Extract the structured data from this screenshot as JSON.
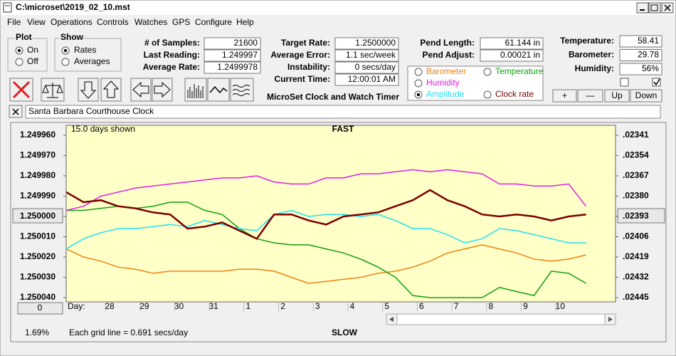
{
  "window": {
    "title": "C:\\microset\\2019_02_10.mst"
  },
  "menu": [
    "File",
    "View",
    "Operations",
    "Controls",
    "Watches",
    "GPS",
    "Configure",
    "Help"
  ],
  "plot": {
    "title": "Plot",
    "options": [
      "On",
      "Off"
    ],
    "selected": 0
  },
  "show": {
    "title": "Show",
    "options": [
      "Rates",
      "Averages"
    ],
    "selected": 0
  },
  "fields_left": [
    {
      "label": "# of Samples:",
      "value": "21600"
    },
    {
      "label": "Last Reading:",
      "value": "1.249997"
    },
    {
      "label": "Average Rate:",
      "value": "1.2499978"
    }
  ],
  "fields_mid": [
    {
      "label": "Target Rate:",
      "value": "1.2500000"
    },
    {
      "label": "Average Error:",
      "value": "1.1 sec/week"
    },
    {
      "label": "Instability:",
      "value": "0 secs/day"
    },
    {
      "label": "Current Time:",
      "value": "12:00:01 AM"
    }
  ],
  "fields_pend": [
    {
      "label": "Pend Length:",
      "value": "61.144 in"
    },
    {
      "label": "Pend Adjust:",
      "value": "0.00021 in"
    }
  ],
  "fields_env": [
    {
      "label": "Temperature:",
      "value": "58.41"
    },
    {
      "label": "Barometer:",
      "value": "29.78"
    },
    {
      "label": "Humidity:",
      "value": "56%"
    }
  ],
  "app_name": "MicroSet Clock and Watch Timer",
  "buttons": [
    "+",
    "—",
    "Up",
    "Down"
  ],
  "clock_name": "Santa Barbara Courthouse Clock",
  "status": {
    "offset_button": "0",
    "percent": "1.69%",
    "grid_note": "Each grid line = 0.691 secs/day"
  },
  "chart_data": {
    "type": "line",
    "top_label": "FAST",
    "bottom_label": "SLOW",
    "subtitle": "15.0 days shown",
    "xlabel": "Day:",
    "xlim": [
      0,
      15.85
    ],
    "xticks": [
      {
        "value": 1.13,
        "label": "28"
      },
      {
        "value": 2.13,
        "label": "29"
      },
      {
        "value": 3.13,
        "label": "30"
      },
      {
        "value": 4.13,
        "label": "31"
      },
      {
        "value": 5.13,
        "label": "1"
      },
      {
        "value": 6.13,
        "label": "2"
      },
      {
        "value": 7.13,
        "label": "3"
      },
      {
        "value": 8.13,
        "label": "4"
      },
      {
        "value": 9.13,
        "label": "5"
      },
      {
        "value": 10.13,
        "label": "6"
      },
      {
        "value": 11.13,
        "label": "7"
      },
      {
        "value": 12.13,
        "label": "8"
      },
      {
        "value": 13.13,
        "label": "9"
      },
      {
        "value": 14.13,
        "label": "10"
      }
    ],
    "ylim": [
      1.25004,
      1.24996
    ],
    "yticks": [
      {
        "value": 1.24996,
        "label": "1.249960"
      },
      {
        "value": 1.24997,
        "label": "1.249970"
      },
      {
        "value": 1.24998,
        "label": "1.249980"
      },
      {
        "value": 1.24999,
        "label": "1.249990"
      },
      {
        "value": 1.25,
        "label": "1.250000"
      },
      {
        "value": 1.25001,
        "label": "1.250010"
      },
      {
        "value": 1.25002,
        "label": "1.250020"
      },
      {
        "value": 1.25003,
        "label": "1.250030"
      },
      {
        "value": 1.25004,
        "label": "1.250040"
      }
    ],
    "y2lim": [
      0.02445,
      0.02341
    ],
    "y2ticks": [
      {
        "value": 0.02341,
        "label": ".02341"
      },
      {
        "value": 0.02354,
        "label": ".02354"
      },
      {
        "value": 0.02367,
        "label": ".02367"
      },
      {
        "value": 0.0238,
        "label": ".02380"
      },
      {
        "value": 0.02393,
        "label": ".02393"
      },
      {
        "value": 0.02406,
        "label": ".02406"
      },
      {
        "value": 0.02419,
        "label": ".02419"
      },
      {
        "value": 0.02432,
        "label": ".02432"
      },
      {
        "value": 0.02445,
        "label": ".02445"
      }
    ],
    "selected_series": 3,
    "x": [
      0,
      0.5,
      1,
      1.5,
      2,
      2.5,
      3,
      3.5,
      4,
      4.5,
      5,
      5.5,
      6,
      6.5,
      7,
      7.5,
      8,
      8.5,
      9,
      9.5,
      10,
      10.5,
      11,
      11.5,
      12,
      12.5,
      13,
      13.5,
      14,
      14.5,
      15
    ],
    "series": [
      {
        "name": "Barometer",
        "color": "#f08010",
        "values": [
          1.250016,
          1.25002,
          1.250022,
          1.250025,
          1.250026,
          1.250028,
          1.250027,
          1.250027,
          1.250027,
          1.250027,
          1.250026,
          1.250026,
          1.250027,
          1.25003,
          1.250033,
          1.250032,
          1.250031,
          1.25003,
          1.250028,
          1.250027,
          1.250025,
          1.250022,
          1.250018,
          1.250016,
          1.250014,
          1.250016,
          1.250018,
          1.250021,
          1.250022,
          1.250021,
          1.250019
        ]
      },
      {
        "name": "Temperature",
        "color": "#10a010",
        "values": [
          1.249997,
          1.249997,
          1.249996,
          1.249995,
          1.249996,
          1.249995,
          1.249993,
          1.249993,
          1.249997,
          1.249999,
          1.250006,
          1.250011,
          1.250013,
          1.250014,
          1.250014,
          1.250016,
          1.250018,
          1.250021,
          1.250025,
          1.25003,
          1.250039,
          1.25004,
          1.25004,
          1.25004,
          1.25004,
          1.250035,
          1.250037,
          1.250039,
          1.250027,
          1.250028,
          1.250033
        ]
      },
      {
        "name": "Humidity",
        "color": "#e020e0",
        "values": [
          1.249997,
          1.249995,
          1.24999,
          1.249988,
          1.249986,
          1.249985,
          1.249984,
          1.249983,
          1.249982,
          1.249981,
          1.249981,
          1.24998,
          1.249983,
          1.249984,
          1.249984,
          1.249981,
          1.249981,
          1.249979,
          1.249979,
          1.249978,
          1.249977,
          1.249978,
          1.249977,
          1.249978,
          1.249979,
          1.249984,
          1.249984,
          1.249985,
          1.249985,
          1.249984,
          1.249995
        ]
      },
      {
        "name": "Amplitude",
        "color": "#20e0f0",
        "values": [
          1.250016,
          1.250011,
          1.250008,
          1.250006,
          1.250006,
          1.250005,
          1.250004,
          1.250005,
          1.250002,
          1.250004,
          1.250006,
          1.250007,
          1.249999,
          1.249997,
          1.25,
          1.249999,
          1.249999,
          1.25,
          1.249999,
          1.250002,
          1.250006,
          1.250006,
          1.250009,
          1.250013,
          1.250011,
          1.250006,
          1.250007,
          1.250009,
          1.250011,
          1.250013,
          1.250013
        ]
      },
      {
        "name": "Clock rate",
        "color": "#7b0000",
        "values": [
          1.249988,
          1.249993,
          1.249992,
          1.249995,
          1.249996,
          1.249998,
          1.249999,
          1.250006,
          1.250005,
          1.250003,
          1.250007,
          1.250011,
          1.249999,
          1.249999,
          1.250002,
          1.250004,
          1.25,
          1.249999,
          1.249998,
          1.249995,
          1.249992,
          1.249987,
          1.249992,
          1.249995,
          1.249999,
          1.25,
          1.249999,
          1.25,
          1.250002,
          1.25,
          1.249999
        ]
      }
    ]
  }
}
